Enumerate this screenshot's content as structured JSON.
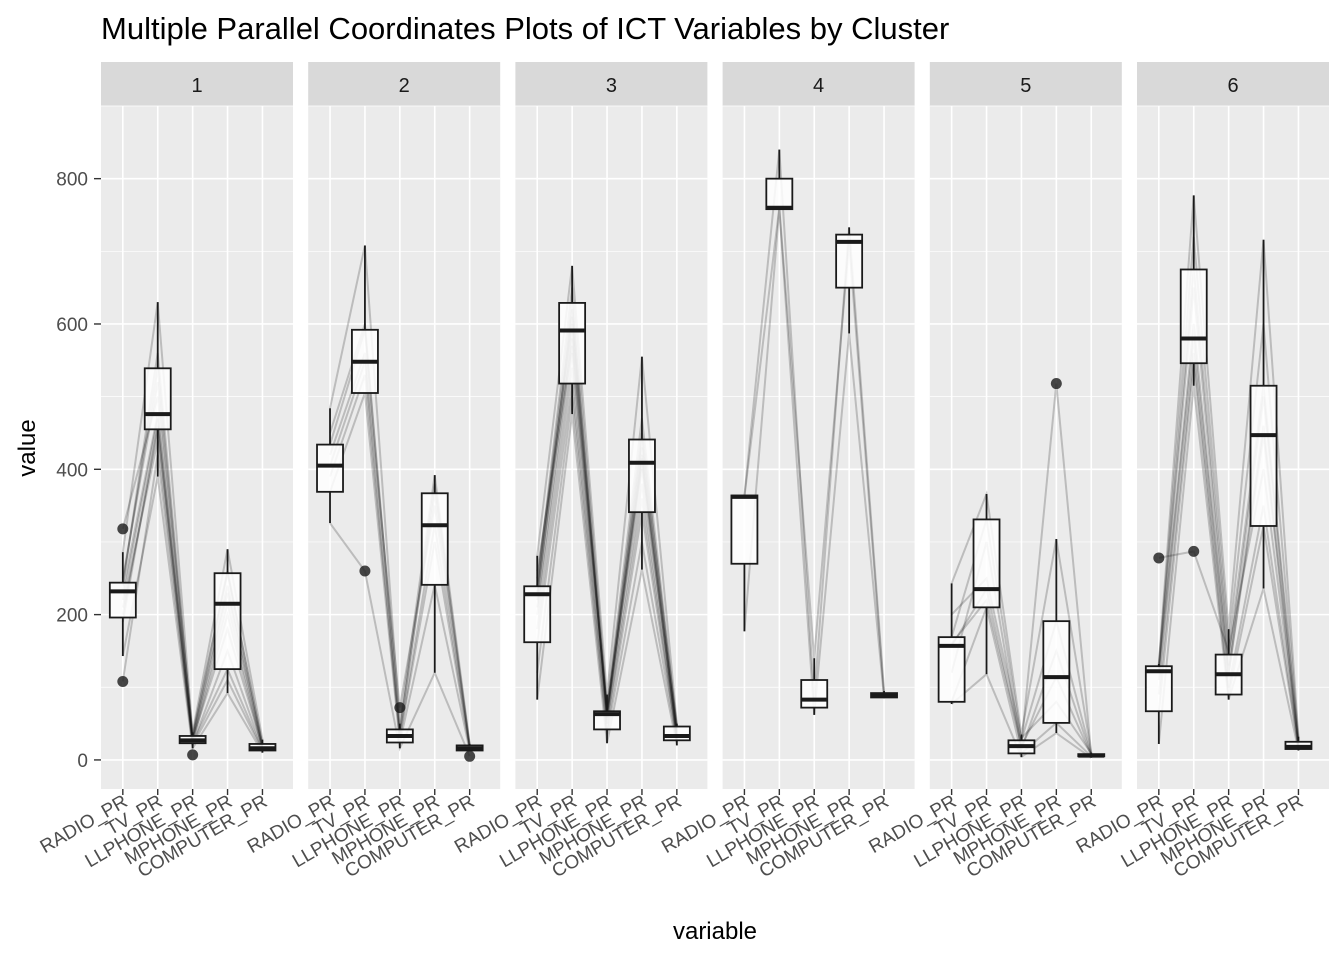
{
  "chart_data": {
    "type": "boxplot-parallel-coordinates-faceted",
    "title": "Multiple Parallel Coordinates Plots of ICT Variables by Cluster",
    "xlabel": "variable",
    "ylabel": "value",
    "ylim": [
      -40,
      900
    ],
    "yticks": [
      0,
      200,
      400,
      600,
      800
    ],
    "categories": [
      "RADIO_PR",
      "TV_PR",
      "LLPHONE_PR",
      "MPHONE_PR",
      "COMPUTER_PR"
    ],
    "grid": true,
    "facets": [
      {
        "label": "1",
        "boxes": [
          {
            "whisker_low": 143,
            "q1": 196,
            "median": 232,
            "q3": 244,
            "whisker_high": 286,
            "outliers": [
              108,
              318
            ]
          },
          {
            "whisker_low": 390,
            "q1": 455,
            "median": 476,
            "q3": 539,
            "whisker_high": 630,
            "outliers": []
          },
          {
            "whisker_low": 16,
            "q1": 23,
            "median": 27,
            "q3": 33,
            "whisker_high": 38,
            "outliers": [
              7
            ]
          },
          {
            "whisker_low": 92,
            "q1": 125,
            "median": 215,
            "q3": 257,
            "whisker_high": 290,
            "outliers": []
          },
          {
            "whisker_low": 10,
            "q1": 13,
            "median": 16,
            "q3": 22,
            "whisker_high": 28,
            "outliers": []
          }
        ],
        "lines": [
          [
            232,
            476,
            27,
            215,
            16
          ],
          [
            200,
            455,
            23,
            125,
            13
          ],
          [
            244,
            539,
            33,
            257,
            22
          ],
          [
            286,
            630,
            38,
            290,
            28
          ],
          [
            143,
            390,
            16,
            92,
            10
          ],
          [
            108,
            420,
            20,
            110,
            12
          ],
          [
            318,
            500,
            30,
            240,
            18
          ],
          [
            220,
            470,
            25,
            200,
            15
          ],
          [
            250,
            520,
            35,
            260,
            20
          ],
          [
            210,
            440,
            22,
            150,
            14
          ],
          [
            240,
            560,
            30,
            230,
            19
          ],
          [
            190,
            460,
            28,
            180,
            17
          ]
        ]
      },
      {
        "label": "2",
        "boxes": [
          {
            "whisker_low": 326,
            "q1": 369,
            "median": 405,
            "q3": 434,
            "whisker_high": 484,
            "outliers": []
          },
          {
            "whisker_low": 505,
            "q1": 505,
            "median": 548,
            "q3": 592,
            "whisker_high": 708,
            "outliers": [
              260
            ]
          },
          {
            "whisker_low": 16,
            "q1": 24,
            "median": 33,
            "q3": 42,
            "whisker_high": 50,
            "outliers": [
              72
            ]
          },
          {
            "whisker_low": 120,
            "q1": 241,
            "median": 323,
            "q3": 367,
            "whisker_high": 392,
            "outliers": []
          },
          {
            "whisker_low": 12,
            "q1": 13,
            "median": 16,
            "q3": 20,
            "whisker_high": 22,
            "outliers": [
              5
            ]
          }
        ],
        "lines": [
          [
            405,
            548,
            33,
            323,
            16
          ],
          [
            369,
            505,
            24,
            241,
            13
          ],
          [
            434,
            592,
            42,
            367,
            20
          ],
          [
            484,
            708,
            50,
            392,
            22
          ],
          [
            326,
            260,
            16,
            120,
            5
          ],
          [
            420,
            560,
            72,
            350,
            18
          ],
          [
            390,
            530,
            30,
            300,
            15
          ],
          [
            450,
            600,
            38,
            380,
            19
          ]
        ]
      },
      {
        "label": "3",
        "boxes": [
          {
            "whisker_low": 83,
            "q1": 162,
            "median": 228,
            "q3": 239,
            "whisker_high": 281,
            "outliers": []
          },
          {
            "whisker_low": 476,
            "q1": 518,
            "median": 591,
            "q3": 629,
            "whisker_high": 680,
            "outliers": []
          },
          {
            "whisker_low": 23,
            "q1": 42,
            "median": 63,
            "q3": 67,
            "whisker_high": 90,
            "outliers": []
          },
          {
            "whisker_low": 262,
            "q1": 341,
            "median": 409,
            "q3": 441,
            "whisker_high": 555,
            "outliers": []
          },
          {
            "whisker_low": 20,
            "q1": 27,
            "median": 33,
            "q3": 46,
            "whisker_high": 50,
            "outliers": []
          }
        ],
        "lines": [
          [
            228,
            591,
            63,
            409,
            33
          ],
          [
            162,
            518,
            42,
            341,
            27
          ],
          [
            239,
            629,
            67,
            441,
            46
          ],
          [
            281,
            680,
            90,
            555,
            50
          ],
          [
            83,
            476,
            23,
            262,
            20
          ],
          [
            200,
            560,
            55,
            380,
            30
          ],
          [
            250,
            600,
            70,
            420,
            40
          ],
          [
            180,
            540,
            50,
            360,
            28
          ],
          [
            230,
            610,
            60,
            430,
            35
          ],
          [
            210,
            580,
            65,
            400,
            38
          ],
          [
            240,
            650,
            75,
            470,
            45
          ],
          [
            120,
            500,
            35,
            300,
            25
          ],
          [
            220,
            620,
            58,
            415,
            32
          ],
          [
            260,
            570,
            68,
            450,
            42
          ]
        ]
      },
      {
        "label": "4",
        "boxes": [
          {
            "whisker_low": 177,
            "q1": 270,
            "median": 362,
            "q3": 364,
            "whisker_high": 364,
            "outliers": []
          },
          {
            "whisker_low": 758,
            "q1": 758,
            "median": 760,
            "q3": 800,
            "whisker_high": 840,
            "outliers": []
          },
          {
            "whisker_low": 62,
            "q1": 72,
            "median": 83,
            "q3": 110,
            "whisker_high": 140,
            "outliers": []
          },
          {
            "whisker_low": 587,
            "q1": 650,
            "median": 713,
            "q3": 723,
            "whisker_high": 733,
            "outliers": []
          },
          {
            "whisker_low": 85,
            "q1": 86,
            "median": 88,
            "q3": 92,
            "whisker_high": 95,
            "outliers": []
          }
        ],
        "lines": [
          [
            177,
            758,
            62,
            587,
            85
          ],
          [
            364,
            840,
            83,
            733,
            95
          ],
          [
            362,
            760,
            140,
            713,
            88
          ]
        ]
      },
      {
        "label": "5",
        "boxes": [
          {
            "whisker_low": 77,
            "q1": 80,
            "median": 157,
            "q3": 169,
            "whisker_high": 243,
            "outliers": []
          },
          {
            "whisker_low": 118,
            "q1": 210,
            "median": 235,
            "q3": 331,
            "whisker_high": 366,
            "outliers": []
          },
          {
            "whisker_low": 4,
            "q1": 9,
            "median": 19,
            "q3": 27,
            "whisker_high": 35,
            "outliers": []
          },
          {
            "whisker_low": 37,
            "q1": 51,
            "median": 114,
            "q3": 191,
            "whisker_high": 304,
            "outliers": [
              518
            ]
          },
          {
            "whisker_low": 3,
            "q1": 5,
            "median": 6,
            "q3": 8,
            "whisker_high": 10,
            "outliers": []
          }
        ],
        "lines": [
          [
            157,
            235,
            19,
            114,
            6
          ],
          [
            80,
            210,
            9,
            51,
            5
          ],
          [
            169,
            331,
            27,
            191,
            8
          ],
          [
            243,
            366,
            35,
            304,
            10
          ],
          [
            77,
            118,
            4,
            37,
            3
          ],
          [
            160,
            220,
            20,
            518,
            7
          ],
          [
            120,
            300,
            15,
            150,
            6
          ],
          [
            200,
            250,
            30,
            80,
            9
          ]
        ]
      },
      {
        "label": "6",
        "boxes": [
          {
            "whisker_low": 22,
            "q1": 67,
            "median": 122,
            "q3": 129,
            "whisker_high": 132,
            "outliers": [
              278
            ]
          },
          {
            "whisker_low": 515,
            "q1": 546,
            "median": 580,
            "q3": 675,
            "whisker_high": 777,
            "outliers": [
              287
            ]
          },
          {
            "whisker_low": 83,
            "q1": 90,
            "median": 118,
            "q3": 145,
            "whisker_high": 180,
            "outliers": []
          },
          {
            "whisker_low": 236,
            "q1": 322,
            "median": 447,
            "q3": 515,
            "whisker_high": 716,
            "outliers": []
          },
          {
            "whisker_low": 13,
            "q1": 15,
            "median": 18,
            "q3": 25,
            "whisker_high": 32,
            "outliers": []
          }
        ],
        "lines": [
          [
            122,
            580,
            118,
            447,
            18
          ],
          [
            67,
            546,
            90,
            322,
            15
          ],
          [
            129,
            675,
            145,
            515,
            25
          ],
          [
            132,
            777,
            180,
            716,
            32
          ],
          [
            22,
            515,
            83,
            236,
            13
          ],
          [
            278,
            287,
            150,
            400,
            20
          ],
          [
            110,
            600,
            120,
            460,
            19
          ],
          [
            125,
            650,
            130,
            500,
            22
          ],
          [
            90,
            560,
            100,
            350,
            16
          ],
          [
            130,
            720,
            160,
            600,
            28
          ]
        ]
      }
    ]
  }
}
